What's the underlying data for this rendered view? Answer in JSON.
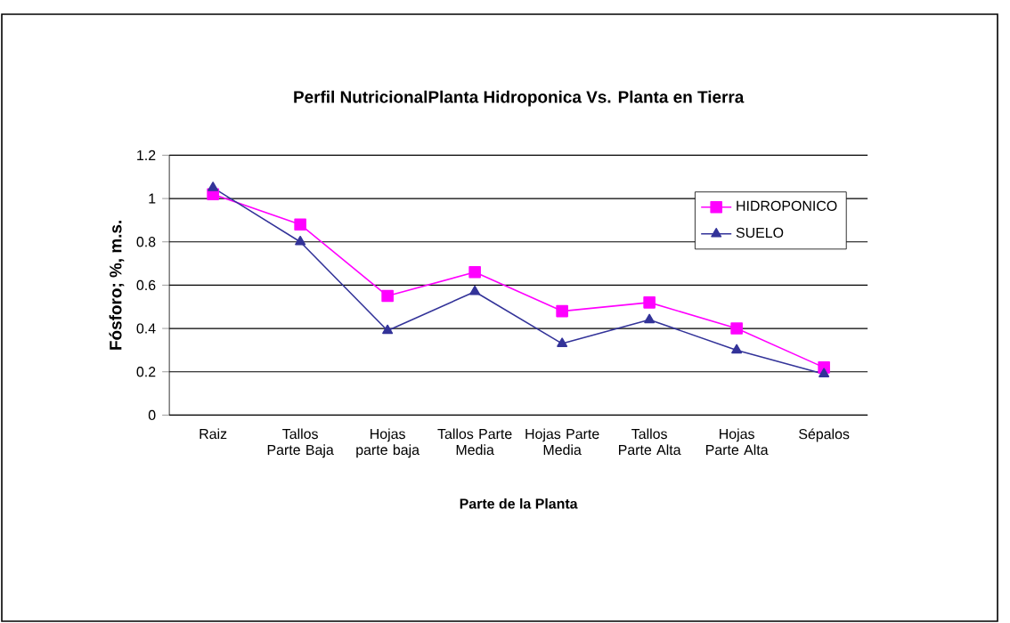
{
  "chart_data": {
    "type": "line",
    "title": "Perfil NutricionalPlanta Hidroponica Vs. Planta en Tierra",
    "xlabel": "Parte de la Planta",
    "ylabel": "Fósforo; %, m.s.",
    "categories": [
      "Raiz",
      "Tallos Parte Baja",
      "Hojas parte baja",
      "Tallos Parte Media",
      "Hojas Parte Media",
      "Tallos Parte Alta",
      "Hojas Parte Alta",
      "Sépalos"
    ],
    "series": [
      {
        "name": "HIDROPONICO",
        "color": "#ff00ff",
        "marker": "square",
        "values": [
          1.02,
          0.88,
          0.55,
          0.66,
          0.48,
          0.52,
          0.4,
          0.22
        ]
      },
      {
        "name": "SUELO",
        "color": "#333399",
        "marker": "triangle",
        "values": [
          1.05,
          0.8,
          0.39,
          0.57,
          0.33,
          0.44,
          0.3,
          0.19
        ]
      }
    ],
    "ylim": [
      0,
      1.2
    ],
    "yticks": [
      0,
      0.2,
      0.4,
      0.6,
      0.8,
      1,
      1.2
    ],
    "grid": "y",
    "legend": "top right",
    "line_style": "solid"
  }
}
